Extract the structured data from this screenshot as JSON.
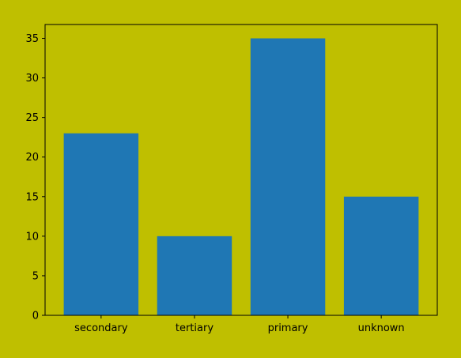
{
  "chart_data": {
    "type": "bar",
    "categories": [
      "secondary",
      "tertiary",
      "primary",
      "unknown"
    ],
    "values": [
      23,
      10,
      35,
      15
    ],
    "title": "",
    "xlabel": "",
    "ylabel": "",
    "ylim": [
      0,
      36.75
    ],
    "yticks": [
      0,
      5,
      10,
      15,
      20,
      25,
      30,
      35
    ],
    "grid": false,
    "legend": "none",
    "colors": {
      "background": "#bfbf00",
      "plot_background": "#bfbf00",
      "bar": "#1f77b4",
      "axis": "#000000"
    }
  }
}
